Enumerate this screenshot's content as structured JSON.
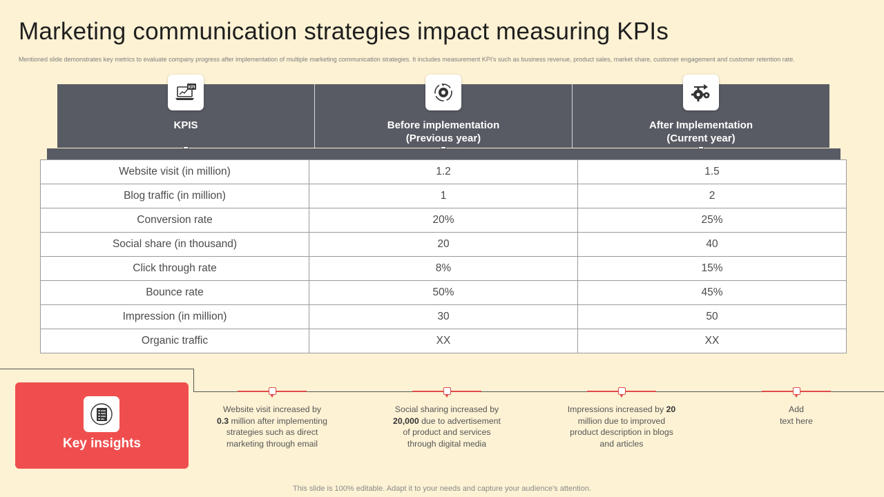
{
  "title": "Marketing communication strategies impact measuring KPIs",
  "subtitle": "Mentioned slide demonstrates key metrics to evaluate company progress after implementation of multiple  marketing communication strategies. It includes measurement KPI's  such as business revenue, product sales, market share, customer engagement and customer retention rate.",
  "header": {
    "columns": [
      {
        "label": "KPIS",
        "icon": "kpi-laptop-icon"
      },
      {
        "label": "Before implementation\n(Previous year)",
        "icon": "target-refresh-icon"
      },
      {
        "label": "After Implementation\n(Current year)",
        "icon": "gears-icon"
      }
    ]
  },
  "table": {
    "rows": [
      [
        "Website visit (in million)",
        "1.2",
        "1.5"
      ],
      [
        "Blog traffic (in million)",
        "1",
        "2"
      ],
      [
        "Conversion rate",
        "20%",
        "25%"
      ],
      [
        "Social share (in thousand)",
        "20",
        "40"
      ],
      [
        "Click through rate",
        "8%",
        "15%"
      ],
      [
        "Bounce rate",
        "50%",
        "45%"
      ],
      [
        "Impression (in million)",
        "30",
        "50"
      ],
      [
        "Organic traffic",
        "XX",
        "XX"
      ]
    ]
  },
  "key_insights": {
    "title": "Key insights",
    "icon": "document-list-icon",
    "items": [
      {
        "pre": "Website visit increased by ",
        "bold": "0.3",
        "post": " million after implementing strategies such as direct marketing through email"
      },
      {
        "pre": "Social sharing increased by ",
        "bold": "20,000",
        "post": " due to advertisement  of product and services through digital media"
      },
      {
        "pre": "Impressions increased by ",
        "bold": "20",
        "post": " million due to improved product description in blogs and articles"
      },
      {
        "pre": "Add\ntext here",
        "bold": "",
        "post": ""
      }
    ]
  },
  "footer": "This slide is 100% editable. Adapt it to your needs and capture your audience's attention.",
  "colors": {
    "background": "#fdf2d4",
    "header": "#585b63",
    "accent": "#f04e4e"
  }
}
